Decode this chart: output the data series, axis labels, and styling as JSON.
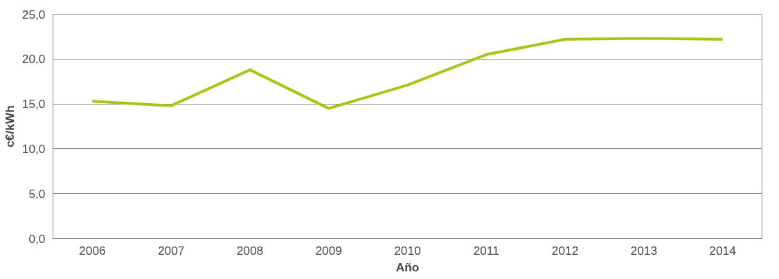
{
  "chart_data": {
    "type": "line",
    "xlabel": "Año",
    "ylabel": "c€/kWh",
    "categories": [
      "2006",
      "2007",
      "2008",
      "2009",
      "2010",
      "2011",
      "2012",
      "2013",
      "2014"
    ],
    "series": [
      {
        "color": "#a9c413",
        "values": [
          15.3,
          14.8,
          18.8,
          14.5,
          17.1,
          20.5,
          22.2,
          22.3,
          22.2
        ]
      }
    ],
    "ylim": [
      0,
      25
    ],
    "yticks": [
      {
        "value": 0,
        "label": "0,0"
      },
      {
        "value": 5,
        "label": "5,0"
      },
      {
        "value": 10,
        "label": "10,0"
      },
      {
        "value": 15,
        "label": "15,0"
      },
      {
        "value": 20,
        "label": "20,0"
      },
      {
        "value": 25,
        "label": "25,0"
      }
    ],
    "grid": "y",
    "marker": "none",
    "line_style": "solid"
  }
}
